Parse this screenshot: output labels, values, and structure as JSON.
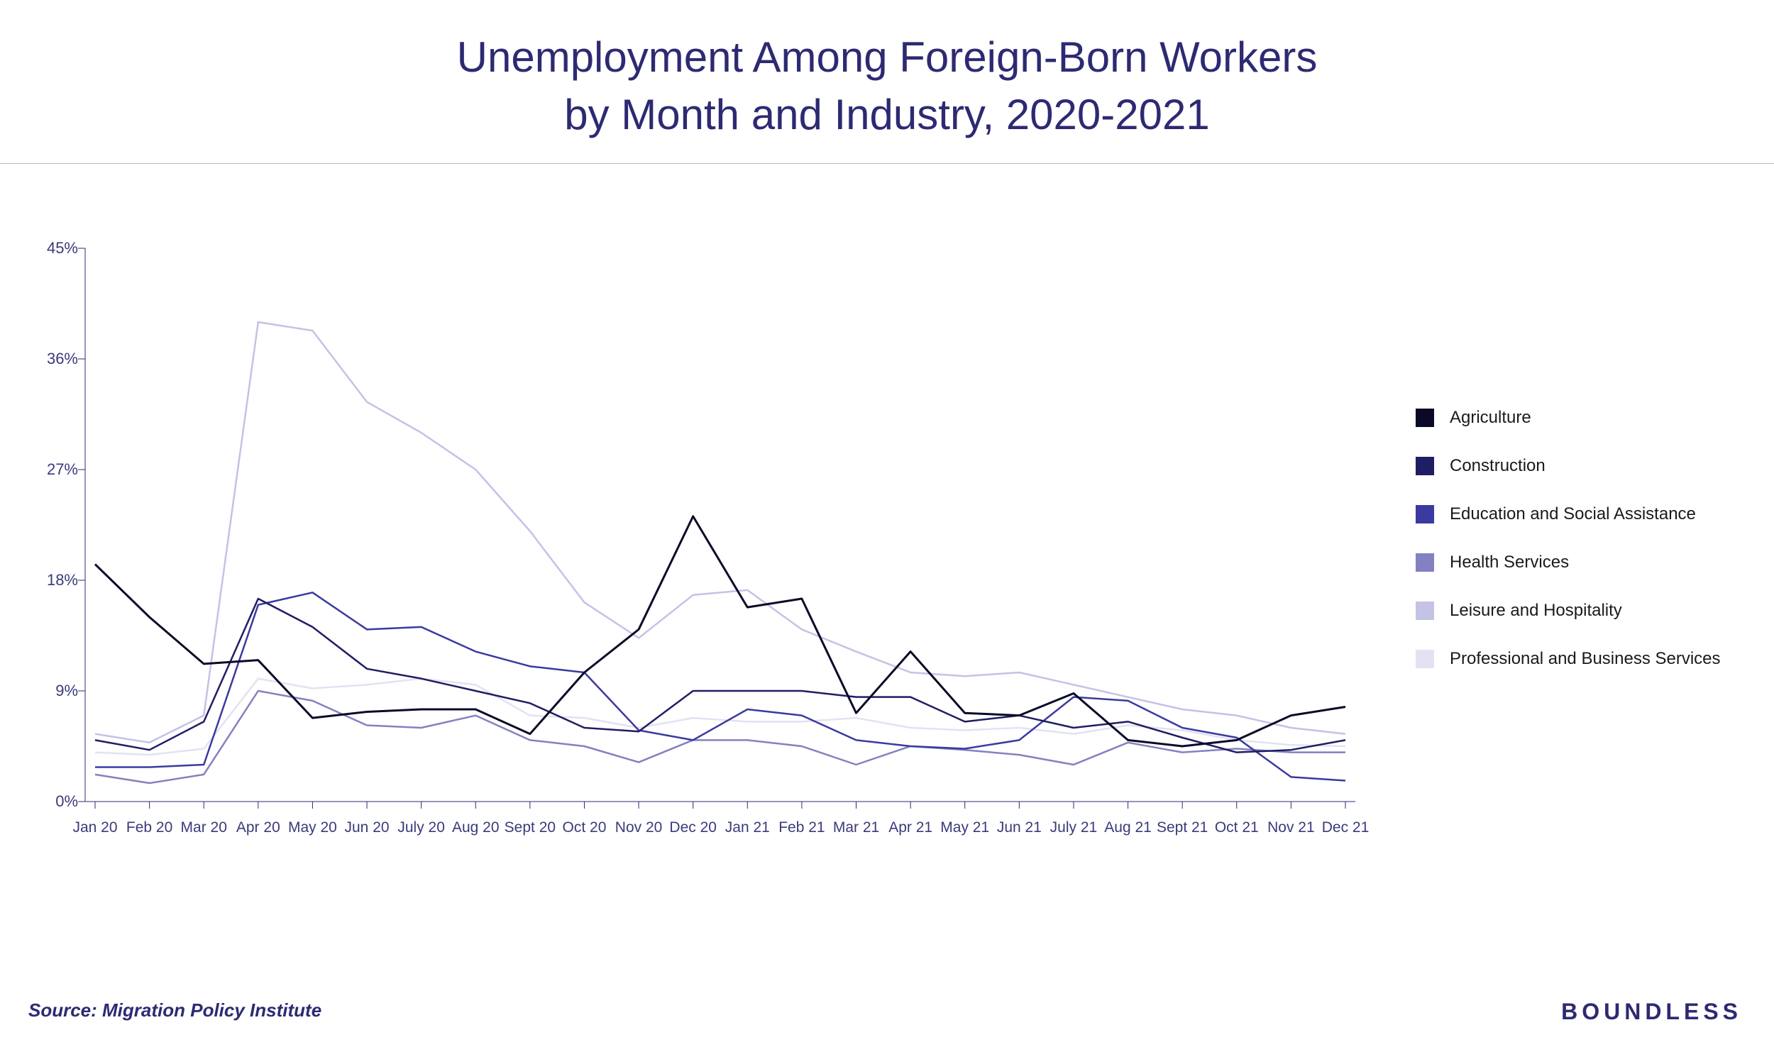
{
  "title_line1": "Unemployment Among Foreign-Born Workers",
  "title_line2": "by Month and Industry, 2020-2021",
  "title_color": "#2d2a73",
  "title_fontsize": 60,
  "source_text": "Source: Migration Policy Institute",
  "brand_text": "BOUNDLESS",
  "chart": {
    "type": "line",
    "ylim": [
      0,
      45
    ],
    "ytick_step": 9,
    "yticks": [
      0,
      9,
      18,
      27,
      36,
      45
    ],
    "ytick_suffix": "%",
    "background_color": "#ffffff",
    "axis_color": "#2d2a73",
    "axis_width": 1,
    "tick_mark_length": 10,
    "label_fontsize": 22,
    "label_color": "#3b3a7a",
    "categories": [
      "Jan 20",
      "Feb 20",
      "Mar 20",
      "Apr 20",
      "May 20",
      "Jun 20",
      "July 20",
      "Aug 20",
      "Sept 20",
      "Oct 20",
      "Nov 20",
      "Dec 20",
      "Jan 21",
      "Feb 21",
      "Mar 21",
      "Apr 21",
      "May 21",
      "Jun 21",
      "July 21",
      "Aug 21",
      "Sept 21",
      "Oct 21",
      "Nov 21",
      "Dec 21"
    ],
    "series": [
      {
        "name": "Agriculture",
        "color": "#0a0a28",
        "line_width": 3,
        "values": [
          19.3,
          15.0,
          11.2,
          11.5,
          6.8,
          7.3,
          7.5,
          7.5,
          5.5,
          10.5,
          14.0,
          23.2,
          15.8,
          16.5,
          7.2,
          12.2,
          7.2,
          7.0,
          8.8,
          5.0,
          4.5,
          5.0,
          7.0,
          7.7
        ]
      },
      {
        "name": "Construction",
        "color": "#1f1d63",
        "line_width": 2.5,
        "values": [
          5.0,
          4.2,
          6.5,
          16.5,
          14.2,
          10.8,
          10.0,
          9.0,
          8.0,
          6.0,
          5.7,
          9.0,
          9.0,
          9.0,
          8.5,
          8.5,
          6.5,
          7.0,
          6.0,
          6.5,
          5.2,
          4.0,
          4.2,
          5.0
        ]
      },
      {
        "name": "Education and Social Assistance",
        "color": "#3b3aa0",
        "line_width": 2.5,
        "values": [
          2.8,
          2.8,
          3.0,
          16.0,
          17.0,
          14.0,
          14.2,
          12.2,
          11.0,
          10.5,
          5.8,
          5.0,
          7.5,
          7.0,
          5.0,
          4.5,
          4.3,
          5.0,
          8.5,
          8.2,
          6.0,
          5.2,
          2.0,
          1.7
        ]
      },
      {
        "name": "Health Services",
        "color": "#8381c0",
        "line_width": 2.5,
        "values": [
          2.2,
          1.5,
          2.2,
          9.0,
          8.2,
          6.2,
          6.0,
          7.0,
          5.0,
          4.5,
          3.2,
          5.0,
          5.0,
          4.5,
          3.0,
          4.5,
          4.2,
          3.8,
          3.0,
          4.8,
          4.0,
          4.3,
          4.0,
          4.0
        ]
      },
      {
        "name": "Leisure and Hospitality",
        "color": "#c4c2e5",
        "line_width": 2.5,
        "values": [
          5.5,
          4.8,
          7.0,
          39.0,
          38.3,
          32.5,
          30.0,
          27.0,
          22.0,
          16.2,
          13.3,
          16.8,
          17.2,
          14.0,
          12.2,
          10.5,
          10.2,
          10.5,
          9.5,
          8.5,
          7.5,
          7.0,
          6.0,
          5.5
        ]
      },
      {
        "name": "Professional and Business Services",
        "color": "#e3e2f2",
        "line_width": 2.5,
        "values": [
          4.0,
          3.8,
          4.3,
          10.0,
          9.2,
          9.5,
          10.0,
          9.5,
          7.0,
          6.8,
          6.0,
          6.8,
          6.5,
          6.5,
          6.8,
          6.0,
          5.8,
          6.0,
          5.5,
          6.2,
          5.8,
          5.0,
          4.6,
          4.5
        ]
      }
    ]
  },
  "legend": {
    "swatch_size": 26,
    "label_fontsize": 24,
    "label_color": "#1a1a1a"
  }
}
